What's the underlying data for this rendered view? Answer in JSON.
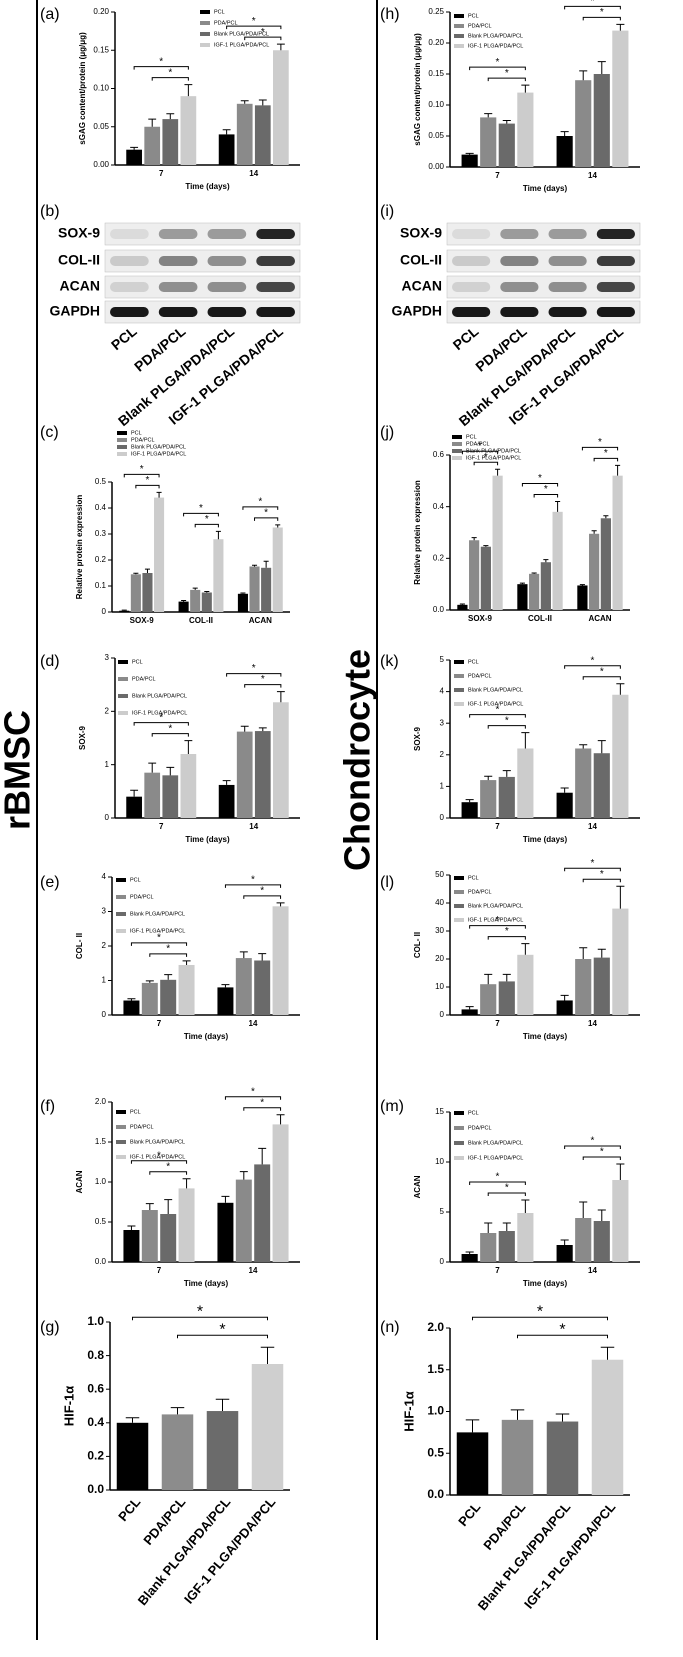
{
  "labels": {
    "left": "rBMSC",
    "right": "Chondrocyte"
  },
  "chart_data": [
    {
      "type": "bar",
      "panel_label": "(a)",
      "ylabel": "sGAG content/protein (μg/μg)",
      "xlabel": "Time (days)",
      "categories": [
        "7",
        "14"
      ],
      "series": [
        {
          "name": "PCL",
          "color": "#000000",
          "values": [
            0.02,
            0.04
          ],
          "errors": [
            0.003,
            0.006
          ]
        },
        {
          "name": "PDA/PCL",
          "color": "#8a8a8a",
          "values": [
            0.05,
            0.08
          ],
          "errors": [
            0.01,
            0.004
          ]
        },
        {
          "name": "Blank PLGA/PDA/PCL",
          "color": "#6a6a6a",
          "values": [
            0.06,
            0.078
          ],
          "errors": [
            0.007,
            0.007
          ]
        },
        {
          "name": "IGF-1 PLGA/PDA/PCL",
          "color": "#cccccc",
          "values": [
            0.09,
            0.15
          ],
          "errors": [
            0.015,
            0.008
          ]
        }
      ],
      "ylim": [
        0,
        0.2
      ],
      "yticks": [
        {
          "value": 0,
          "label": "0.00"
        },
        0.05,
        {
          "value": 0.1,
          "label": "0.10"
        },
        0.15,
        {
          "value": 0.2,
          "label": "0.20"
        }
      ],
      "legend": "upper center",
      "annotations": [
        "*",
        "*",
        "*",
        "*"
      ]
    },
    {
      "type": "blot",
      "panel_label": "(b)",
      "rows": [
        "SOX-9",
        "COL-II",
        "ACAN",
        "GAPDH"
      ],
      "columns": [
        "PCL",
        "PDA/PCL",
        "Blank PLGA/PDA/PCL",
        "IGF-1 PLGA/PDA/PCL"
      ]
    },
    {
      "type": "bar",
      "panel_label": "(c)",
      "ylabel": "Relative protein expression",
      "categories": [
        "SOX-9",
        "COL-II",
        "ACAN"
      ],
      "series": [
        {
          "name": "PCL",
          "color": "#000000",
          "values": [
            0.005,
            0.04,
            0.07
          ],
          "errors": [
            0.002,
            0.004,
            0.003
          ]
        },
        {
          "name": "PDA/PCL",
          "color": "#8a8a8a",
          "values": [
            0.145,
            0.085,
            0.175
          ],
          "errors": [
            0.004,
            0.007,
            0.005
          ]
        },
        {
          "name": "Blank PLGA/PDA/PCL",
          "color": "#6a6a6a",
          "values": [
            0.15,
            0.075,
            0.17
          ],
          "errors": [
            0.015,
            0.004,
            0.025
          ]
        },
        {
          "name": "IGF-1 PLGA/PDA/PCL",
          "color": "#cccccc",
          "values": [
            0.44,
            0.28,
            0.325
          ],
          "errors": [
            0.02,
            0.03,
            0.01
          ]
        }
      ],
      "ylim": [
        0,
        0.5
      ],
      "yticks": [
        0,
        0.1,
        0.2,
        0.3,
        0.4,
        0.5
      ],
      "legend": "above",
      "annotations": [
        "*",
        "*",
        "*",
        "*",
        "*",
        "*"
      ]
    },
    {
      "type": "bar",
      "panel_label": "(d)",
      "ylabel": "SOX-9",
      "xlabel": "Time (days)",
      "categories": [
        "7",
        "14"
      ],
      "series": [
        {
          "name": "PCL",
          "color": "#000000",
          "values": [
            0.4,
            0.62
          ],
          "errors": [
            0.12,
            0.08
          ]
        },
        {
          "name": "PDA/PCL",
          "color": "#8a8a8a",
          "values": [
            0.85,
            1.62
          ],
          "errors": [
            0.18,
            0.1
          ]
        },
        {
          "name": "Blank PLGA/PDA/PCL",
          "color": "#6a6a6a",
          "values": [
            0.8,
            1.63
          ],
          "errors": [
            0.15,
            0.06
          ]
        },
        {
          "name": "IGF-1 PLGA/PDA/PCL",
          "color": "#cccccc",
          "values": [
            1.2,
            2.17
          ],
          "errors": [
            0.25,
            0.2
          ]
        }
      ],
      "ylim": [
        0,
        3
      ],
      "yticks": [
        0,
        1,
        2,
        3
      ],
      "legend": "upper left",
      "annotations": [
        "*",
        "*",
        "*",
        "*"
      ]
    },
    {
      "type": "bar",
      "panel_label": "(e)",
      "ylabel": "COL- II",
      "xlabel": "Time (days)",
      "categories": [
        "7",
        "14"
      ],
      "series": [
        {
          "name": "PCL",
          "color": "#000000",
          "values": [
            0.42,
            0.8
          ],
          "errors": [
            0.05,
            0.08
          ]
        },
        {
          "name": "PDA/PCL",
          "color": "#8a8a8a",
          "values": [
            0.93,
            1.65
          ],
          "errors": [
            0.06,
            0.18
          ]
        },
        {
          "name": "Blank PLGA/PDA/PCL",
          "color": "#6a6a6a",
          "values": [
            1.02,
            1.58
          ],
          "errors": [
            0.15,
            0.2
          ]
        },
        {
          "name": "IGF-1 PLGA/PDA/PCL",
          "color": "#cccccc",
          "values": [
            1.45,
            3.15
          ],
          "errors": [
            0.12,
            0.1
          ]
        }
      ],
      "ylim": [
        0,
        4
      ],
      "yticks": [
        0,
        1,
        2,
        3,
        4
      ],
      "legend": "upper left",
      "annotations": [
        "*",
        "*",
        "*",
        "*"
      ]
    },
    {
      "type": "bar",
      "panel_label": "(f)",
      "ylabel": "ACAN",
      "xlabel": "Time (days)",
      "categories": [
        "7",
        "14"
      ],
      "series": [
        {
          "name": "PCL",
          "color": "#000000",
          "values": [
            0.4,
            0.74
          ],
          "errors": [
            0.05,
            0.08
          ]
        },
        {
          "name": "PDA/PCL",
          "color": "#8a8a8a",
          "values": [
            0.65,
            1.03
          ],
          "errors": [
            0.08,
            0.1
          ]
        },
        {
          "name": "Blank PLGA/PDA/PCL",
          "color": "#6a6a6a",
          "values": [
            0.6,
            1.22
          ],
          "errors": [
            0.18,
            0.2
          ]
        },
        {
          "name": "IGF-1 PLGA/PDA/PCL",
          "color": "#cccccc",
          "values": [
            0.92,
            1.72
          ],
          "errors": [
            0.12,
            0.12
          ]
        }
      ],
      "ylim": [
        0,
        2
      ],
      "yticks": [
        {
          "value": 0,
          "label": "0.0"
        },
        0.5,
        {
          "value": 1,
          "label": "1.0"
        },
        1.5,
        {
          "value": 2,
          "label": "2.0"
        }
      ],
      "legend": "upper left",
      "annotations": [
        "*",
        "*",
        "*",
        "*"
      ]
    },
    {
      "type": "bar",
      "panel_label": "(g)",
      "ylabel": "HIF-1α",
      "categories": [
        "PCL",
        "PDA/PCL",
        "Blank PLGA/PDA/PCL",
        "IGF-1 PLGA/PDA/PCL"
      ],
      "values": [
        0.4,
        0.45,
        0.47,
        0.75
      ],
      "errors": [
        0.03,
        0.04,
        0.07,
        0.1
      ],
      "colors": [
        "#000000",
        "#8c8c8c",
        "#6b6b6b",
        "#cfcfcf"
      ],
      "ylim": [
        0,
        1
      ],
      "yticks": [
        {
          "value": 0,
          "label": "0.0"
        },
        0.2,
        0.4,
        0.6,
        0.8,
        {
          "value": 1,
          "label": "1.0"
        }
      ],
      "annotations": [
        "*",
        "*"
      ]
    },
    {
      "type": "bar",
      "panel_label": "(h)",
      "ylabel": "sGAG content/protein (μg/μg)",
      "xlabel": "Time (days)",
      "categories": [
        "7",
        "14"
      ],
      "series": [
        {
          "name": "PCL",
          "color": "#000000",
          "values": [
            0.02,
            0.05
          ],
          "errors": [
            0.002,
            0.007
          ]
        },
        {
          "name": "PDA/PCL",
          "color": "#8a8a8a",
          "values": [
            0.08,
            0.14
          ],
          "errors": [
            0.006,
            0.015
          ]
        },
        {
          "name": "Blank PLGA/PDA/PCL",
          "color": "#6a6a6a",
          "values": [
            0.07,
            0.15
          ],
          "errors": [
            0.005,
            0.02
          ]
        },
        {
          "name": "IGF-1 PLGA/PDA/PCL",
          "color": "#cccccc",
          "values": [
            0.12,
            0.22
          ],
          "errors": [
            0.012,
            0.01
          ]
        }
      ],
      "ylim": [
        0,
        0.25
      ],
      "yticks": [
        {
          "value": 0,
          "label": "0.00"
        },
        0.05,
        {
          "value": 0.1,
          "label": "0.10"
        },
        0.15,
        {
          "value": 0.2,
          "label": "0.20"
        },
        0.25
      ],
      "legend": "upper left",
      "annotations": [
        "*",
        "*",
        "*",
        "*"
      ]
    },
    {
      "type": "blot",
      "panel_label": "(i)",
      "rows": [
        "SOX-9",
        "COL-II",
        "ACAN",
        "GAPDH"
      ],
      "columns": [
        "PCL",
        "PDA/PCL",
        "Blank PLGA/PDA/PCL",
        "IGF-1 PLGA/PDA/PCL"
      ]
    },
    {
      "type": "bar",
      "panel_label": "(j)",
      "ylabel": "Relative protein expression",
      "categories": [
        "SOX-9",
        "COL-II",
        "ACAN"
      ],
      "series": [
        {
          "name": "PCL",
          "color": "#000000",
          "values": [
            0.02,
            0.1,
            0.095
          ],
          "errors": [
            0.003,
            0.004,
            0.003
          ]
        },
        {
          "name": "PDA/PCL",
          "color": "#8a8a8a",
          "values": [
            0.27,
            0.14,
            0.295
          ],
          "errors": [
            0.01,
            0.003,
            0.012
          ]
        },
        {
          "name": "Blank PLGA/PDA/PCL",
          "color": "#6a6a6a",
          "values": [
            0.245,
            0.185,
            0.355
          ],
          "errors": [
            0.004,
            0.01,
            0.01
          ]
        },
        {
          "name": "IGF-1 PLGA/PDA/PCL",
          "color": "#cccccc",
          "values": [
            0.52,
            0.38,
            0.52
          ],
          "errors": [
            0.025,
            0.04,
            0.04
          ]
        }
      ],
      "ylim": [
        0,
        0.6
      ],
      "yticks": [
        {
          "value": 0,
          "label": "0.0"
        },
        0.2,
        0.4,
        0.6
      ],
      "legend": "above",
      "annotations": [
        "*",
        "*",
        "*",
        "*",
        "*",
        "*"
      ]
    },
    {
      "type": "bar",
      "panel_label": "(k)",
      "ylabel": "SOX-9",
      "xlabel": "Time (days)",
      "categories": [
        "7",
        "14"
      ],
      "series": [
        {
          "name": "PCL",
          "color": "#000000",
          "values": [
            0.5,
            0.8
          ],
          "errors": [
            0.08,
            0.15
          ]
        },
        {
          "name": "PDA/PCL",
          "color": "#8a8a8a",
          "values": [
            1.2,
            2.2
          ],
          "errors": [
            0.12,
            0.12
          ]
        },
        {
          "name": "Blank PLGA/PDA/PCL",
          "color": "#6a6a6a",
          "values": [
            1.3,
            2.05
          ],
          "errors": [
            0.2,
            0.4
          ]
        },
        {
          "name": "IGF-1 PLGA/PDA/PCL",
          "color": "#cccccc",
          "values": [
            2.2,
            3.9
          ],
          "errors": [
            0.5,
            0.35
          ]
        }
      ],
      "ylim": [
        0,
        5
      ],
      "yticks": [
        0,
        1,
        2,
        3,
        4,
        5
      ],
      "legend": "upper left",
      "annotations": [
        "*",
        "*",
        "*",
        "*"
      ]
    },
    {
      "type": "bar",
      "panel_label": "(l)",
      "ylabel": "COL- II",
      "xlabel": "Time (days)",
      "categories": [
        "7",
        "14"
      ],
      "series": [
        {
          "name": "PCL",
          "color": "#000000",
          "values": [
            2,
            5.2
          ],
          "errors": [
            1,
            1.8
          ]
        },
        {
          "name": "PDA/PCL",
          "color": "#8a8a8a",
          "values": [
            11,
            20
          ],
          "errors": [
            3.5,
            4
          ]
        },
        {
          "name": "Blank PLGA/PDA/PCL",
          "color": "#6a6a6a",
          "values": [
            12,
            20.5
          ],
          "errors": [
            2.5,
            3
          ]
        },
        {
          "name": "IGF-1 PLGA/PDA/PCL",
          "color": "#cccccc",
          "values": [
            21.5,
            38
          ],
          "errors": [
            4,
            8
          ]
        }
      ],
      "ylim": [
        0,
        50
      ],
      "yticks": [
        0,
        10,
        20,
        30,
        40,
        50
      ],
      "legend": "upper left",
      "annotations": [
        "*",
        "*",
        "*",
        "*"
      ]
    },
    {
      "type": "bar",
      "panel_label": "(m)",
      "ylabel": "ACAN",
      "xlabel": "Time (days)",
      "categories": [
        "7",
        "14"
      ],
      "series": [
        {
          "name": "PCL",
          "color": "#000000",
          "values": [
            0.8,
            1.7
          ],
          "errors": [
            0.2,
            0.5
          ]
        },
        {
          "name": "PDA/PCL",
          "color": "#8a8a8a",
          "values": [
            2.9,
            4.4
          ],
          "errors": [
            1,
            1.6
          ]
        },
        {
          "name": "Blank PLGA/PDA/PCL",
          "color": "#6a6a6a",
          "values": [
            3.1,
            4.1
          ],
          "errors": [
            0.8,
            1.1
          ]
        },
        {
          "name": "IGF-1 PLGA/PDA/PCL",
          "color": "#cccccc",
          "values": [
            4.9,
            8.2
          ],
          "errors": [
            1.3,
            1.6
          ]
        }
      ],
      "ylim": [
        0,
        15
      ],
      "yticks": [
        0,
        5,
        10,
        15
      ],
      "legend": "upper left",
      "annotations": [
        "*",
        "*",
        "*",
        "*"
      ]
    },
    {
      "type": "bar",
      "panel_label": "(n)",
      "ylabel": "HIF-1α",
      "categories": [
        "PCL",
        "PDA/PCL",
        "Blank PLGA/PDA/PCL",
        "IGF-1 PLGA/PDA/PCL"
      ],
      "values": [
        0.75,
        0.9,
        0.88,
        1.62
      ],
      "errors": [
        0.15,
        0.12,
        0.09,
        0.15
      ],
      "colors": [
        "#000000",
        "#8c8c8c",
        "#6b6b6b",
        "#cfcfcf"
      ],
      "ylim": [
        0,
        2
      ],
      "yticks": [
        {
          "value": 0,
          "label": "0.0"
        },
        0.5,
        {
          "value": 1,
          "label": "1.0"
        },
        1.5,
        {
          "value": 2,
          "label": "2.0"
        }
      ],
      "annotations": [
        "*",
        "*"
      ]
    }
  ]
}
